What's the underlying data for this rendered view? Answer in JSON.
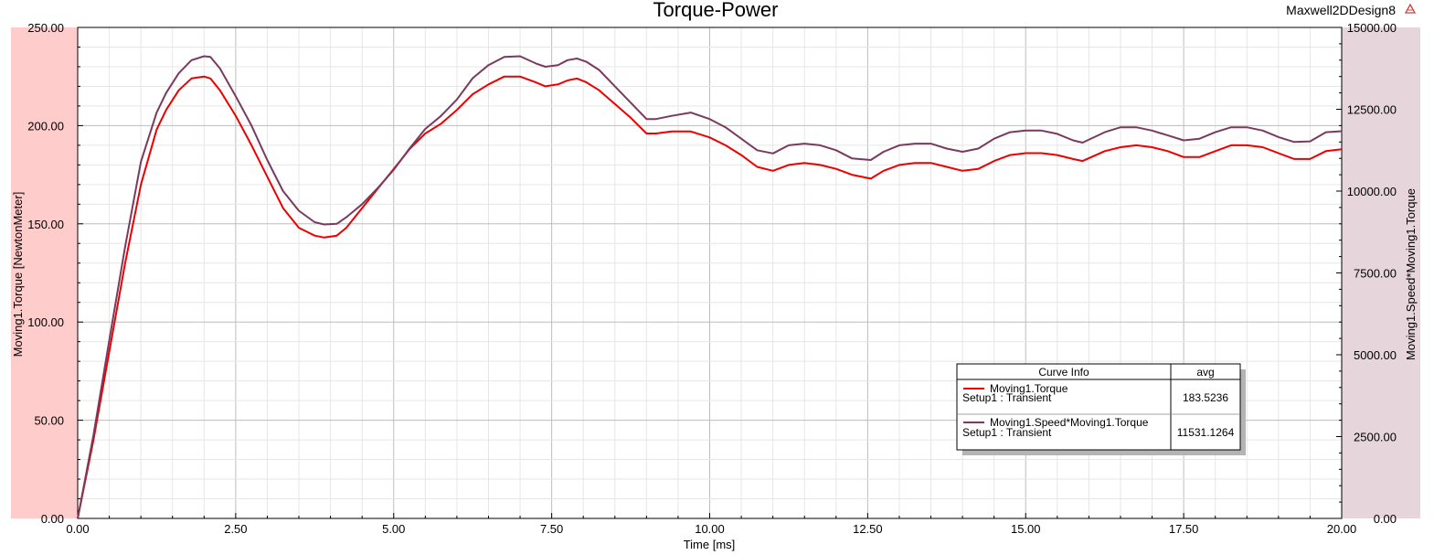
{
  "chart_data": {
    "type": "line",
    "title": "Torque-Power",
    "design_name": "Maxwell2DDesign8",
    "xlabel": "Time [ms]",
    "ylabel_left": "Moving1.Torque [NewtonMeter]",
    "ylabel_right": "Moving1.Speed*Moving1.Torque",
    "xlim": [
      0,
      20
    ],
    "ylim_left": [
      0,
      250
    ],
    "ylim_right": [
      0,
      15000
    ],
    "x_ticks": [
      "0.00",
      "2.50",
      "5.00",
      "7.50",
      "10.00",
      "12.50",
      "15.00",
      "17.50",
      "20.00"
    ],
    "y_left_ticks": [
      "0.00",
      "50.00",
      "100.00",
      "150.00",
      "200.00",
      "250.00"
    ],
    "y_right_ticks": [
      "0.00",
      "2500.00",
      "5000.00",
      "7500.00",
      "10000.00",
      "12500.00",
      "15000.00"
    ],
    "grid": true,
    "colors": {
      "left_band": "#ffcccc",
      "right_band": "#e6d6dc",
      "torque": "#ee0000",
      "power": "#7a3a5e",
      "grid": "#c8c8c8"
    },
    "series": [
      {
        "name": "Moving1.Torque",
        "axis": "left",
        "x": [
          0,
          0.25,
          0.5,
          0.75,
          1.0,
          1.25,
          1.4,
          1.6,
          1.8,
          2.0,
          2.1,
          2.25,
          2.5,
          2.75,
          3.0,
          3.25,
          3.5,
          3.75,
          3.9,
          4.1,
          4.25,
          4.5,
          4.75,
          5.0,
          5.25,
          5.5,
          5.75,
          6.0,
          6.25,
          6.5,
          6.75,
          7.0,
          7.25,
          7.4,
          7.6,
          7.75,
          7.9,
          8.05,
          8.25,
          8.5,
          8.75,
          9.0,
          9.15,
          9.4,
          9.7,
          10.0,
          10.25,
          10.5,
          10.75,
          11.0,
          11.25,
          11.5,
          11.75,
          12.0,
          12.25,
          12.55,
          12.75,
          13.0,
          13.25,
          13.5,
          13.75,
          14.0,
          14.25,
          14.5,
          14.75,
          15.0,
          15.25,
          15.5,
          15.75,
          15.9,
          16.25,
          16.5,
          16.75,
          17.0,
          17.25,
          17.5,
          17.75,
          18.0,
          18.25,
          18.5,
          18.75,
          19.0,
          19.25,
          19.5,
          19.75,
          20.0
        ],
        "values": [
          0,
          40,
          85,
          130,
          170,
          198,
          208,
          218,
          224,
          225,
          224,
          218,
          205,
          190,
          174,
          158,
          148,
          144,
          143,
          144,
          148,
          158,
          168,
          178,
          188,
          196,
          201,
          208,
          216,
          221,
          225,
          225,
          222,
          220,
          221,
          223,
          224,
          222,
          218,
          211,
          204,
          196,
          196,
          197,
          197,
          194,
          190,
          185,
          179,
          177,
          180,
          181,
          180,
          178,
          175,
          173,
          177,
          180,
          181,
          181,
          179,
          177,
          178,
          182,
          185,
          186,
          186,
          185,
          183,
          182,
          187,
          189,
          190,
          189,
          187,
          184,
          184,
          187,
          190,
          190,
          189,
          186,
          183,
          183,
          187,
          188
        ]
      },
      {
        "name": "Moving1.Speed*Moving1.Torque",
        "axis": "right",
        "x": [
          0,
          0.25,
          0.5,
          0.75,
          1.0,
          1.25,
          1.4,
          1.6,
          1.8,
          2.0,
          2.1,
          2.25,
          2.5,
          2.75,
          3.0,
          3.25,
          3.5,
          3.75,
          3.9,
          4.1,
          4.25,
          4.5,
          4.75,
          5.0,
          5.25,
          5.5,
          5.75,
          6.0,
          6.25,
          6.5,
          6.75,
          7.0,
          7.25,
          7.4,
          7.6,
          7.75,
          7.9,
          8.05,
          8.25,
          8.5,
          8.75,
          9.0,
          9.15,
          9.4,
          9.7,
          10.0,
          10.25,
          10.5,
          10.75,
          11.0,
          11.25,
          11.5,
          11.75,
          12.0,
          12.25,
          12.55,
          12.75,
          13.0,
          13.25,
          13.5,
          13.75,
          14.0,
          14.25,
          14.5,
          14.75,
          15.0,
          15.25,
          15.5,
          15.75,
          15.9,
          16.25,
          16.5,
          16.75,
          17.0,
          17.25,
          17.5,
          17.75,
          18.0,
          18.25,
          18.5,
          18.75,
          19.0,
          19.25,
          19.5,
          19.75,
          20.0
        ],
        "values": [
          0,
          2550,
          5450,
          8300,
          10900,
          12400,
          13000,
          13600,
          14000,
          14120,
          14100,
          13750,
          12900,
          12000,
          10950,
          10000,
          9400,
          9050,
          8980,
          9000,
          9200,
          9600,
          10100,
          10650,
          11300,
          11900,
          12300,
          12800,
          13450,
          13850,
          14100,
          14120,
          13900,
          13800,
          13850,
          14000,
          14050,
          13950,
          13700,
          13200,
          12700,
          12200,
          12200,
          12300,
          12400,
          12200,
          11950,
          11600,
          11250,
          11150,
          11400,
          11450,
          11400,
          11250,
          11000,
          10950,
          11200,
          11400,
          11450,
          11450,
          11300,
          11200,
          11300,
          11600,
          11800,
          11850,
          11850,
          11750,
          11550,
          11480,
          11800,
          11950,
          11950,
          11850,
          11700,
          11550,
          11600,
          11800,
          11950,
          11950,
          11850,
          11650,
          11500,
          11520,
          11800,
          11830
        ]
      }
    ],
    "legend": {
      "placement": "bottom-right",
      "header_name": "Curve Info",
      "header_stat": "avg",
      "entries": [
        {
          "name": "Moving1.Torque",
          "setup": "Setup1 : Transient",
          "avg": "183.5236"
        },
        {
          "name": "Moving1.Speed*Moving1.Torque",
          "setup": "Setup1 : Transient",
          "avg": "11531.1264"
        }
      ]
    }
  }
}
